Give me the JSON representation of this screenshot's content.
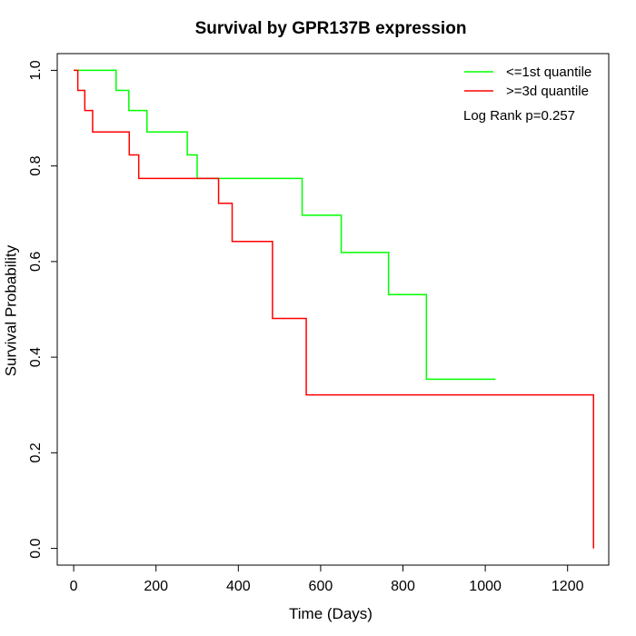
{
  "chart_data": {
    "type": "line",
    "title": "Survival by GPR137B expression",
    "xlabel": "Time (Days)",
    "ylabel": "Survival Probability",
    "xlim": [
      -40,
      1300
    ],
    "ylim": [
      -0.035,
      1.035
    ],
    "xticks": [
      0,
      200,
      400,
      600,
      800,
      1000,
      1200
    ],
    "yticks": [
      0.0,
      0.2,
      0.4,
      0.6,
      0.8,
      1.0
    ],
    "xtick_labels": [
      "0",
      "200",
      "400",
      "600",
      "800",
      "1000",
      "1200"
    ],
    "ytick_labels": [
      "0.0",
      "0.2",
      "0.4",
      "0.6",
      "0.8",
      "1.0"
    ],
    "grid": false,
    "legend_position": "top-right",
    "annotation": "Log Rank p=0.257",
    "series": [
      {
        "name": "<=1st quantile",
        "color": "#00ff00",
        "x": [
          0,
          103,
          134,
          178,
          276,
          300,
          555,
          650,
          765,
          857,
          1025
        ],
        "y": [
          1.0,
          0.958,
          0.916,
          0.871,
          0.823,
          0.774,
          0.697,
          0.619,
          0.531,
          0.354,
          0.354
        ]
      },
      {
        "name": ">=3d quantile",
        "color": "#ff0000",
        "x": [
          0,
          10,
          27,
          46,
          135,
          158,
          352,
          385,
          483,
          565,
          1263,
          1263
        ],
        "y": [
          1.0,
          0.958,
          0.916,
          0.871,
          0.823,
          0.774,
          0.722,
          0.642,
          0.481,
          0.321,
          0.321,
          0.0
        ]
      }
    ]
  }
}
